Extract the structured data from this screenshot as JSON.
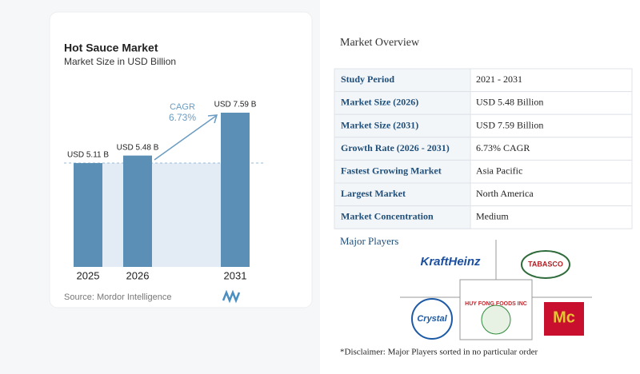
{
  "chart_data": {
    "type": "bar",
    "title": "Hot Sauce Market",
    "subtitle": "Market Size in USD Billion",
    "categories": [
      "2025",
      "2026",
      "2031"
    ],
    "values": [
      5.11,
      5.48,
      7.59
    ],
    "value_labels": [
      "USD 5.11 B",
      "USD 5.48 B",
      "USD 7.59 B"
    ],
    "color": "#5b8fb5",
    "annotation": {
      "label": "CAGR",
      "value": "6.73%"
    },
    "source": "Source: Mordor Intelligence"
  },
  "overview": {
    "title": "Market Overview",
    "rows": [
      [
        "Study Period",
        "2021 - 2031"
      ],
      [
        "Market Size (2026)",
        "USD 5.48 Billion"
      ],
      [
        "Market Size (2031)",
        "USD 7.59 Billion"
      ],
      [
        "Growth Rate (2026 - 2031)",
        "6.73% CAGR"
      ],
      [
        "Fastest Growing Market",
        "Asia Pacific"
      ],
      [
        "Largest Market",
        "North America"
      ],
      [
        "Market Concentration",
        "Medium"
      ]
    ],
    "players_title": "Major Players",
    "players": [
      "KraftHeinz",
      "TABASCO",
      "Crystal",
      "HUY FONG FOODS INC",
      "Mc"
    ],
    "disclaimer": "*Disclaimer: Major Players sorted in no particular order"
  }
}
